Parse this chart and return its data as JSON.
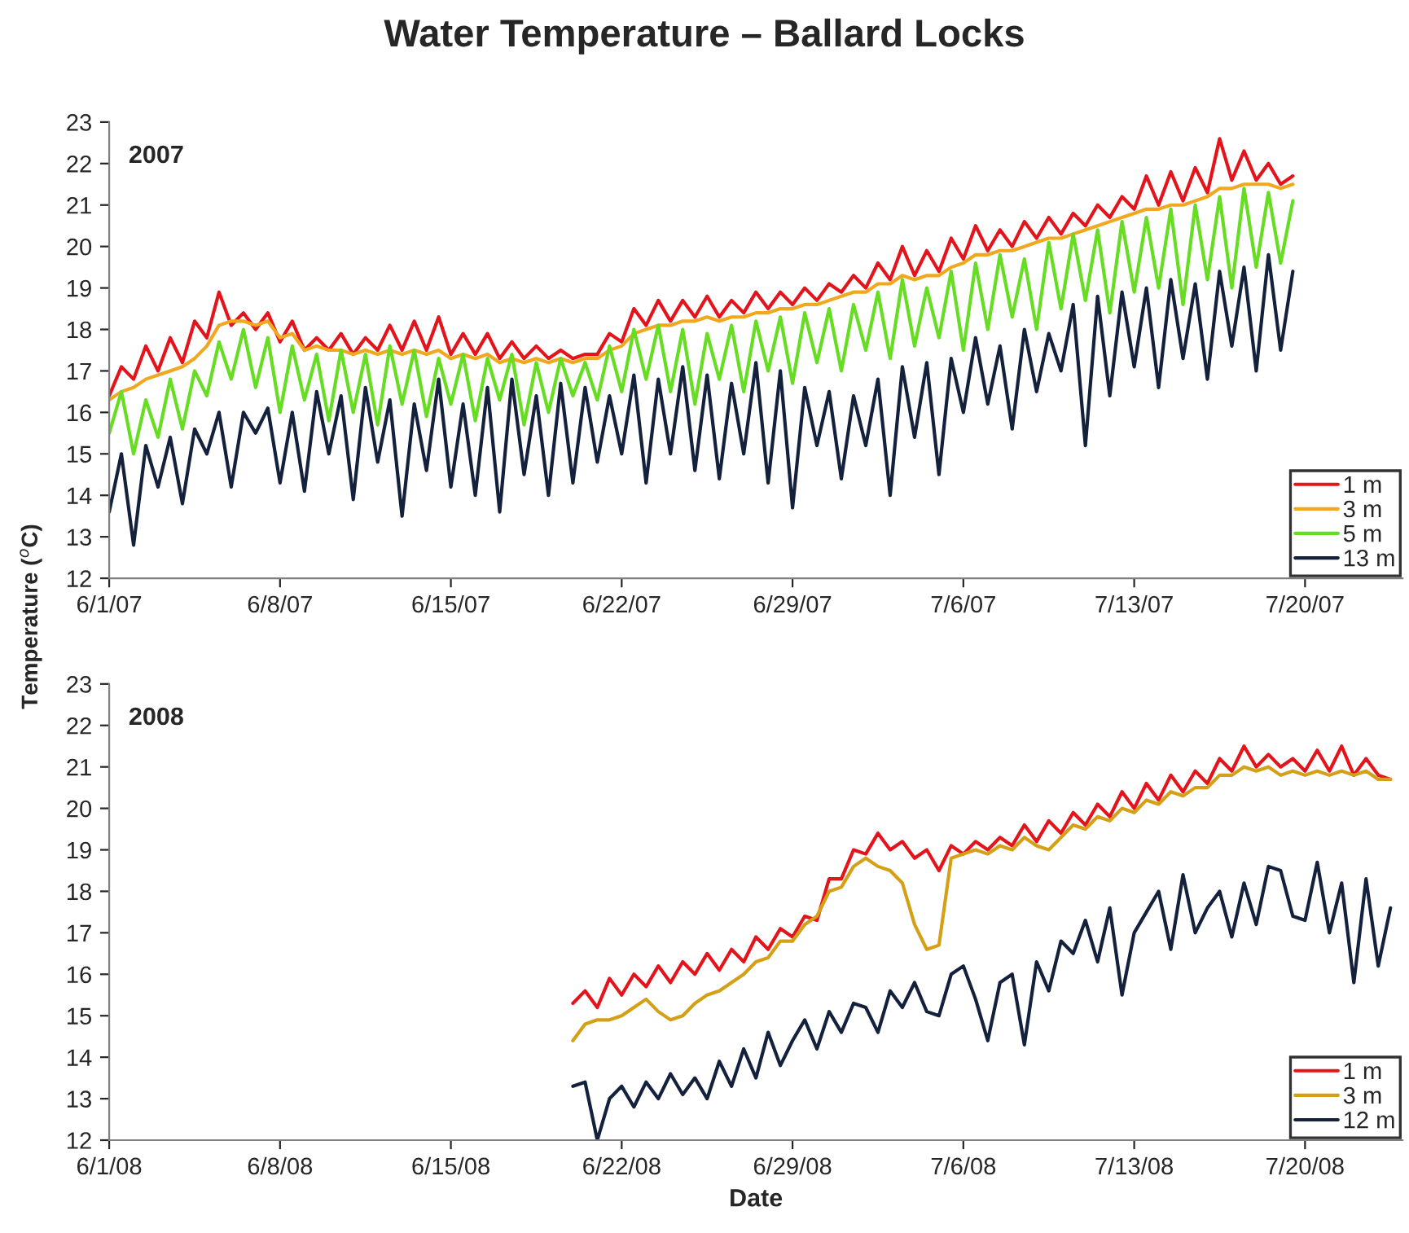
{
  "chart_data": [
    {
      "type": "line",
      "title": "Water Temperature – Ballard Locks",
      "ylabel": "Temperature ($^{o}$C)",
      "annotations": [
        "2007"
      ],
      "legend": "bottom right",
      "grid": false,
      "line_style": "solid",
      "marker": "none",
      "xlim": [
        "2007-06-01",
        "2007-07-24"
      ],
      "ylim": [
        12,
        23
      ],
      "yticks": [
        12,
        13,
        14,
        15,
        16,
        17,
        18,
        19,
        20,
        21,
        22,
        23
      ],
      "xticks": [
        {
          "value": "2007-06-01",
          "label": "6/1/07"
        },
        {
          "value": "2007-06-08",
          "label": "6/8/07"
        },
        {
          "value": "2007-06-15",
          "label": "6/15/07"
        },
        {
          "value": "2007-06-22",
          "label": "6/22/07"
        },
        {
          "value": "2007-06-29",
          "label": "6/29/07"
        },
        {
          "value": "2007-07-06",
          "label": "7/6/07"
        },
        {
          "value": "2007-07-13",
          "label": "7/13/07"
        },
        {
          "value": "2007-07-20",
          "label": "7/20/07"
        }
      ],
      "x": [
        "2007-06-01T00:00",
        "2007-06-01T12:00",
        "2007-06-02T00:00",
        "2007-06-02T12:00",
        "2007-06-03T00:00",
        "2007-06-03T12:00",
        "2007-06-04T00:00",
        "2007-06-04T12:00",
        "2007-06-05T00:00",
        "2007-06-05T12:00",
        "2007-06-06T00:00",
        "2007-06-06T12:00",
        "2007-06-07T00:00",
        "2007-06-07T12:00",
        "2007-06-08T00:00",
        "2007-06-08T12:00",
        "2007-06-09T00:00",
        "2007-06-09T12:00",
        "2007-06-10T00:00",
        "2007-06-10T12:00",
        "2007-06-11T00:00",
        "2007-06-11T12:00",
        "2007-06-12T00:00",
        "2007-06-12T12:00",
        "2007-06-13T00:00",
        "2007-06-13T12:00",
        "2007-06-14T00:00",
        "2007-06-14T12:00",
        "2007-06-15T00:00",
        "2007-06-15T12:00",
        "2007-06-16T00:00",
        "2007-06-16T12:00",
        "2007-06-17T00:00",
        "2007-06-17T12:00",
        "2007-06-18T00:00",
        "2007-06-18T12:00",
        "2007-06-19T00:00",
        "2007-06-19T12:00",
        "2007-06-20T00:00",
        "2007-06-20T12:00",
        "2007-06-21T00:00",
        "2007-06-21T12:00",
        "2007-06-22T00:00",
        "2007-06-22T12:00",
        "2007-06-23T00:00",
        "2007-06-23T12:00",
        "2007-06-24T00:00",
        "2007-06-24T12:00",
        "2007-06-25T00:00",
        "2007-06-25T12:00",
        "2007-06-26T00:00",
        "2007-06-26T12:00",
        "2007-06-27T00:00",
        "2007-06-27T12:00",
        "2007-06-28T00:00",
        "2007-06-28T12:00",
        "2007-06-29T00:00",
        "2007-06-29T12:00",
        "2007-06-30T00:00",
        "2007-06-30T12:00",
        "2007-07-01T00:00",
        "2007-07-01T12:00",
        "2007-07-02T00:00",
        "2007-07-02T12:00",
        "2007-07-03T00:00",
        "2007-07-03T12:00",
        "2007-07-04T00:00",
        "2007-07-04T12:00",
        "2007-07-05T00:00",
        "2007-07-05T12:00",
        "2007-07-06T00:00",
        "2007-07-06T12:00",
        "2007-07-07T00:00",
        "2007-07-07T12:00",
        "2007-07-08T00:00",
        "2007-07-08T12:00",
        "2007-07-09T00:00",
        "2007-07-09T12:00",
        "2007-07-10T00:00",
        "2007-07-10T12:00",
        "2007-07-11T00:00",
        "2007-07-11T12:00",
        "2007-07-12T00:00",
        "2007-07-12T12:00",
        "2007-07-13T00:00",
        "2007-07-13T12:00",
        "2007-07-14T00:00",
        "2007-07-14T12:00",
        "2007-07-15T00:00",
        "2007-07-15T12:00",
        "2007-07-16T00:00",
        "2007-07-16T12:00",
        "2007-07-17T00:00",
        "2007-07-17T12:00",
        "2007-07-18T00:00",
        "2007-07-18T12:00",
        "2007-07-19T00:00",
        "2007-07-19T12:00"
      ],
      "series": [
        {
          "name": "1 m",
          "color": "#e3141b",
          "values": [
            16.4,
            17.1,
            16.8,
            17.6,
            17.0,
            17.8,
            17.2,
            18.2,
            17.8,
            18.9,
            18.1,
            18.4,
            18.0,
            18.4,
            17.7,
            18.2,
            17.5,
            17.8,
            17.5,
            17.9,
            17.4,
            17.8,
            17.5,
            18.1,
            17.5,
            18.2,
            17.5,
            18.3,
            17.4,
            17.9,
            17.4,
            17.9,
            17.3,
            17.7,
            17.3,
            17.6,
            17.3,
            17.5,
            17.3,
            17.4,
            17.4,
            17.9,
            17.7,
            18.5,
            18.1,
            18.7,
            18.2,
            18.7,
            18.3,
            18.8,
            18.3,
            18.7,
            18.4,
            18.9,
            18.5,
            18.9,
            18.6,
            19.0,
            18.7,
            19.1,
            18.9,
            19.3,
            19.0,
            19.6,
            19.2,
            20.0,
            19.3,
            19.9,
            19.4,
            20.2,
            19.7,
            20.5,
            19.9,
            20.4,
            20.0,
            20.6,
            20.2,
            20.7,
            20.3,
            20.8,
            20.5,
            21.0,
            20.7,
            21.2,
            20.9,
            21.7,
            21.0,
            21.8,
            21.1,
            21.9,
            21.3,
            22.6,
            21.6,
            22.3,
            21.6,
            22.0,
            21.5,
            21.7
          ]
        },
        {
          "name": "3 m",
          "color": "#f0a81e",
          "values": [
            16.3,
            16.5,
            16.6,
            16.8,
            16.9,
            17.0,
            17.1,
            17.3,
            17.6,
            18.1,
            18.2,
            18.2,
            18.1,
            18.2,
            17.8,
            17.9,
            17.5,
            17.6,
            17.5,
            17.5,
            17.4,
            17.5,
            17.4,
            17.5,
            17.4,
            17.5,
            17.4,
            17.5,
            17.3,
            17.4,
            17.3,
            17.4,
            17.2,
            17.3,
            17.2,
            17.3,
            17.2,
            17.3,
            17.2,
            17.3,
            17.3,
            17.5,
            17.6,
            17.9,
            18.0,
            18.1,
            18.1,
            18.2,
            18.2,
            18.3,
            18.2,
            18.3,
            18.3,
            18.4,
            18.4,
            18.5,
            18.5,
            18.6,
            18.6,
            18.7,
            18.8,
            18.9,
            18.9,
            19.1,
            19.1,
            19.3,
            19.2,
            19.3,
            19.3,
            19.5,
            19.6,
            19.8,
            19.8,
            19.9,
            19.9,
            20.0,
            20.1,
            20.2,
            20.2,
            20.3,
            20.4,
            20.5,
            20.6,
            20.7,
            20.8,
            20.9,
            20.9,
            21.0,
            21.0,
            21.1,
            21.2,
            21.4,
            21.4,
            21.5,
            21.5,
            21.5,
            21.4,
            21.5
          ]
        },
        {
          "name": "5 m",
          "color": "#66dd22",
          "values": [
            15.5,
            16.5,
            15.0,
            16.3,
            15.4,
            16.8,
            15.6,
            17.0,
            16.4,
            17.7,
            16.8,
            18.0,
            16.6,
            17.8,
            16.0,
            17.6,
            16.3,
            17.4,
            15.8,
            17.5,
            16.0,
            17.4,
            15.7,
            17.6,
            16.2,
            17.5,
            15.9,
            17.3,
            16.2,
            17.4,
            15.8,
            17.3,
            16.3,
            17.4,
            15.7,
            17.2,
            16.0,
            17.3,
            16.4,
            17.2,
            16.3,
            17.6,
            16.5,
            18.0,
            16.8,
            18.1,
            16.5,
            18.0,
            16.2,
            17.9,
            16.8,
            18.1,
            16.5,
            18.2,
            17.0,
            18.3,
            16.7,
            18.4,
            17.2,
            18.5,
            17.0,
            18.6,
            17.5,
            18.9,
            17.3,
            19.2,
            17.6,
            19.0,
            17.8,
            19.4,
            17.5,
            19.6,
            18.0,
            19.8,
            18.3,
            19.7,
            18.0,
            20.1,
            18.5,
            20.3,
            18.7,
            20.4,
            18.4,
            20.6,
            18.9,
            20.7,
            19.0,
            20.9,
            18.6,
            21.0,
            19.2,
            21.2,
            19.0,
            21.4,
            19.5,
            21.3,
            19.6,
            21.1
          ]
        },
        {
          "name": "13 m",
          "color": "#14213d",
          "values": [
            13.6,
            15.0,
            12.8,
            15.2,
            14.2,
            15.4,
            13.8,
            15.6,
            15.0,
            16.0,
            14.2,
            16.0,
            15.5,
            16.1,
            14.3,
            16.0,
            14.1,
            16.5,
            15.0,
            16.4,
            13.9,
            16.6,
            14.8,
            16.3,
            13.5,
            16.2,
            14.6,
            16.8,
            14.2,
            16.2,
            14.0,
            16.6,
            13.6,
            16.8,
            14.5,
            16.4,
            14.0,
            16.7,
            14.3,
            16.6,
            14.8,
            16.4,
            15.0,
            16.9,
            14.3,
            16.8,
            15.0,
            17.1,
            14.6,
            16.9,
            14.4,
            16.7,
            15.0,
            17.2,
            14.3,
            17.0,
            13.7,
            16.6,
            15.2,
            16.5,
            14.4,
            16.4,
            15.2,
            16.8,
            14.0,
            17.1,
            15.4,
            17.2,
            14.5,
            17.3,
            16.0,
            17.8,
            16.2,
            17.6,
            15.6,
            18.0,
            16.5,
            17.9,
            17.0,
            18.6,
            15.2,
            18.8,
            16.4,
            18.9,
            17.1,
            19.0,
            16.6,
            19.2,
            17.3,
            19.1,
            16.8,
            19.4,
            17.6,
            19.5,
            17.0,
            19.8,
            17.5,
            19.4
          ]
        }
      ]
    },
    {
      "type": "line",
      "xlabel": "Date",
      "annotations": [
        "2008"
      ],
      "legend": "bottom right",
      "grid": false,
      "line_style": "solid",
      "marker": "none",
      "xlim": [
        "2008-06-01",
        "2008-07-24"
      ],
      "ylim": [
        12,
        23
      ],
      "yticks": [
        12,
        13,
        14,
        15,
        16,
        17,
        18,
        19,
        20,
        21,
        22,
        23
      ],
      "xticks": [
        {
          "value": "2008-06-01",
          "label": "6/1/08"
        },
        {
          "value": "2008-06-08",
          "label": "6/8/08"
        },
        {
          "value": "2008-06-15",
          "label": "6/15/08"
        },
        {
          "value": "2008-06-22",
          "label": "6/22/08"
        },
        {
          "value": "2008-06-29",
          "label": "6/29/08"
        },
        {
          "value": "2008-07-06",
          "label": "7/6/08"
        },
        {
          "value": "2008-07-13",
          "label": "7/13/08"
        },
        {
          "value": "2008-07-20",
          "label": "7/20/08"
        }
      ],
      "x": [
        "2008-06-20T00:00",
        "2008-06-20T12:00",
        "2008-06-21T00:00",
        "2008-06-21T12:00",
        "2008-06-22T00:00",
        "2008-06-22T12:00",
        "2008-06-23T00:00",
        "2008-06-23T12:00",
        "2008-06-24T00:00",
        "2008-06-24T12:00",
        "2008-06-25T00:00",
        "2008-06-25T12:00",
        "2008-06-26T00:00",
        "2008-06-26T12:00",
        "2008-06-27T00:00",
        "2008-06-27T12:00",
        "2008-06-28T00:00",
        "2008-06-28T12:00",
        "2008-06-29T00:00",
        "2008-06-29T12:00",
        "2008-06-30T00:00",
        "2008-06-30T12:00",
        "2008-07-01T00:00",
        "2008-07-01T12:00",
        "2008-07-02T00:00",
        "2008-07-02T12:00",
        "2008-07-03T00:00",
        "2008-07-03T12:00",
        "2008-07-04T00:00",
        "2008-07-04T12:00",
        "2008-07-05T00:00",
        "2008-07-05T12:00",
        "2008-07-06T00:00",
        "2008-07-06T12:00",
        "2008-07-07T00:00",
        "2008-07-07T12:00",
        "2008-07-08T00:00",
        "2008-07-08T12:00",
        "2008-07-09T00:00",
        "2008-07-09T12:00",
        "2008-07-10T00:00",
        "2008-07-10T12:00",
        "2008-07-11T00:00",
        "2008-07-11T12:00",
        "2008-07-12T00:00",
        "2008-07-12T12:00",
        "2008-07-13T00:00",
        "2008-07-13T12:00",
        "2008-07-14T00:00",
        "2008-07-14T12:00",
        "2008-07-15T00:00",
        "2008-07-15T12:00",
        "2008-07-16T00:00",
        "2008-07-16T12:00",
        "2008-07-17T00:00",
        "2008-07-17T12:00",
        "2008-07-18T00:00",
        "2008-07-18T12:00",
        "2008-07-19T00:00",
        "2008-07-19T12:00",
        "2008-07-20T00:00",
        "2008-07-20T12:00",
        "2008-07-21T00:00",
        "2008-07-21T12:00",
        "2008-07-22T00:00",
        "2008-07-22T12:00",
        "2008-07-23T00:00",
        "2008-07-23T12:00"
      ],
      "series": [
        {
          "name": "1 m",
          "color": "#e3141b",
          "values": [
            15.3,
            15.6,
            15.2,
            15.9,
            15.5,
            16.0,
            15.7,
            16.2,
            15.8,
            16.3,
            16.0,
            16.5,
            16.1,
            16.6,
            16.3,
            16.9,
            16.6,
            17.1,
            16.9,
            17.4,
            17.3,
            18.3,
            18.3,
            19.0,
            18.9,
            19.4,
            19.0,
            19.2,
            18.8,
            19.0,
            18.5,
            19.1,
            18.9,
            19.2,
            19.0,
            19.3,
            19.1,
            19.6,
            19.2,
            19.7,
            19.4,
            19.9,
            19.6,
            20.1,
            19.8,
            20.4,
            20.0,
            20.6,
            20.2,
            20.8,
            20.4,
            20.9,
            20.6,
            21.2,
            20.9,
            21.5,
            21.0,
            21.3,
            21.0,
            21.2,
            20.9,
            21.4,
            20.9,
            21.5,
            20.8,
            21.2,
            20.8,
            20.7
          ]
        },
        {
          "name": "3 m",
          "color": "#d4a017",
          "values": [
            14.4,
            14.8,
            14.9,
            14.9,
            15.0,
            15.2,
            15.4,
            15.1,
            14.9,
            15.0,
            15.3,
            15.5,
            15.6,
            15.8,
            16.0,
            16.3,
            16.4,
            16.8,
            16.8,
            17.2,
            17.4,
            18.0,
            18.1,
            18.6,
            18.8,
            18.6,
            18.5,
            18.2,
            17.2,
            16.6,
            16.7,
            18.8,
            18.9,
            19.0,
            18.9,
            19.1,
            19.0,
            19.3,
            19.1,
            19.0,
            19.3,
            19.6,
            19.5,
            19.8,
            19.7,
            20.0,
            19.9,
            20.2,
            20.1,
            20.4,
            20.3,
            20.5,
            20.5,
            20.8,
            20.8,
            21.0,
            20.9,
            21.0,
            20.8,
            20.9,
            20.8,
            20.9,
            20.8,
            20.9,
            20.8,
            20.9,
            20.7,
            20.7
          ]
        },
        {
          "name": "12 m",
          "color": "#14213d",
          "values": [
            13.3,
            13.4,
            12.0,
            13.0,
            13.3,
            12.8,
            13.4,
            13.0,
            13.6,
            13.1,
            13.5,
            13.0,
            13.9,
            13.3,
            14.2,
            13.5,
            14.6,
            13.8,
            14.4,
            14.9,
            14.2,
            15.1,
            14.6,
            15.3,
            15.2,
            14.6,
            15.6,
            15.2,
            15.8,
            15.1,
            15.0,
            16.0,
            16.2,
            15.4,
            14.4,
            15.8,
            16.0,
            14.3,
            16.3,
            15.6,
            16.8,
            16.5,
            17.3,
            16.3,
            17.6,
            15.5,
            17.0,
            17.5,
            18.0,
            16.6,
            18.4,
            17.0,
            17.6,
            18.0,
            16.9,
            18.2,
            17.2,
            18.6,
            18.5,
            17.4,
            17.3,
            18.7,
            17.0,
            18.2,
            15.8,
            18.3,
            16.2,
            17.6
          ]
        }
      ]
    }
  ]
}
